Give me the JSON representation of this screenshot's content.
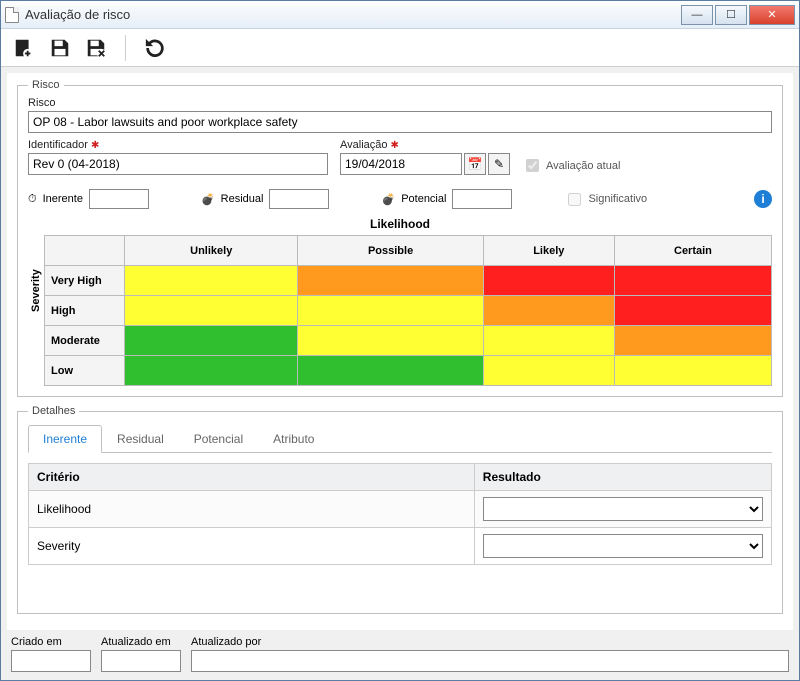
{
  "window": {
    "title": "Avaliação de risco"
  },
  "toolbar": {
    "new_tip": "Novo",
    "save_tip": "Salvar",
    "save_delete_tip": "Salvar/Excluir",
    "refresh_tip": "Atualizar"
  },
  "risco": {
    "legend": "Risco",
    "risk_label": "Risco",
    "risk_value": "OP 08 - Labor lawsuits and poor workplace safety",
    "id_label": "Identificador",
    "id_value": "Rev 0 (04-2018)",
    "eval_label": "Avaliação",
    "eval_value": "19/04/2018",
    "eval_current_label": "Avaliação atual",
    "inerente_label": "Inerente",
    "residual_label": "Residual",
    "potencial_label": "Potencial",
    "significativo_label": "Significativo"
  },
  "matrix": {
    "x_axis_label": "Likelihood",
    "y_axis_label": "Severity",
    "x_headers": [
      "Unlikely",
      "Possible",
      "Likely",
      "Certain"
    ],
    "y_headers": [
      "Very High",
      "High",
      "Moderate",
      "Low"
    ],
    "colors": {
      "yellow": "#ffff33",
      "orange": "#ff9a1f",
      "red": "#ff1f1f",
      "green": "#2fbf2f"
    },
    "cells": [
      [
        "yellow",
        "orange",
        "red",
        "red"
      ],
      [
        "yellow",
        "yellow",
        "orange",
        "red"
      ],
      [
        "green",
        "yellow",
        "yellow",
        "orange"
      ],
      [
        "green",
        "green",
        "yellow",
        "yellow"
      ]
    ]
  },
  "detalhes": {
    "legend": "Detalhes",
    "tabs": [
      "Inerente",
      "Residual",
      "Potencial",
      "Atributo"
    ],
    "active_tab": 0,
    "col_criterio": "Critério",
    "col_resultado": "Resultado",
    "rows": [
      {
        "criterio": "Likelihood"
      },
      {
        "criterio": "Severity"
      }
    ]
  },
  "footer": {
    "criado_label": "Criado em",
    "atualizado_label": "Atualizado em",
    "atualizado_por_label": "Atualizado por"
  }
}
